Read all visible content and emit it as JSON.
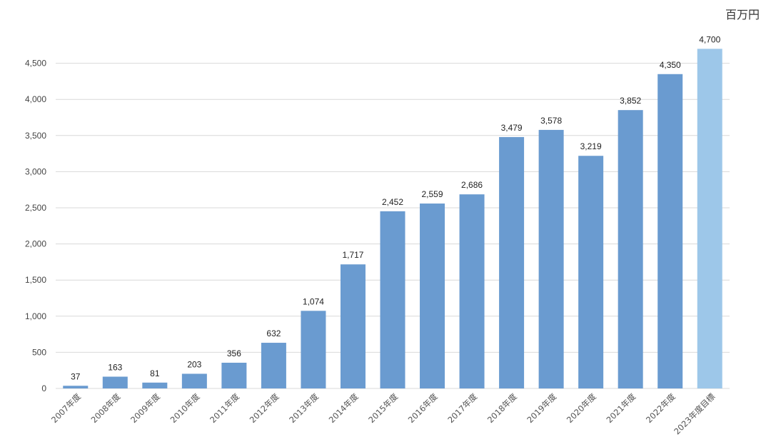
{
  "chart_data": {
    "type": "bar",
    "unit": "百万円",
    "categories": [
      "2007年度",
      "2008年度",
      "2009年度",
      "2010年度",
      "2011年度",
      "2012年度",
      "2013年度",
      "2014年度",
      "2015年度",
      "2016年度",
      "2017年度",
      "2018年度",
      "2019年度",
      "2020年度",
      "2021年度",
      "2022年度",
      "2023年度目標"
    ],
    "values": [
      37,
      163,
      81,
      203,
      356,
      632,
      1074,
      1717,
      2452,
      2559,
      2686,
      3479,
      3578,
      3219,
      3852,
      4350,
      4700
    ],
    "value_labels": [
      "37",
      "163",
      "81",
      "203",
      "356",
      "632",
      "1,074",
      "1,717",
      "2,452",
      "2,559",
      "2,686",
      "3,479",
      "3,578",
      "3,219",
      "3,852",
      "4,350",
      "4,700"
    ],
    "yticks": [
      0,
      500,
      1000,
      1500,
      2000,
      2500,
      3000,
      3500,
      4000,
      4500
    ],
    "ytick_labels": [
      "0",
      "500",
      "1,000",
      "1,500",
      "2,000",
      "2,500",
      "3,000",
      "3,500",
      "4,000",
      "4,500"
    ],
    "ylim": [
      0,
      4700
    ],
    "grid": true,
    "legend": "none",
    "colors": {
      "actual": "#6a9bd0",
      "target": "#9dc7e9"
    },
    "target_index": 16
  }
}
